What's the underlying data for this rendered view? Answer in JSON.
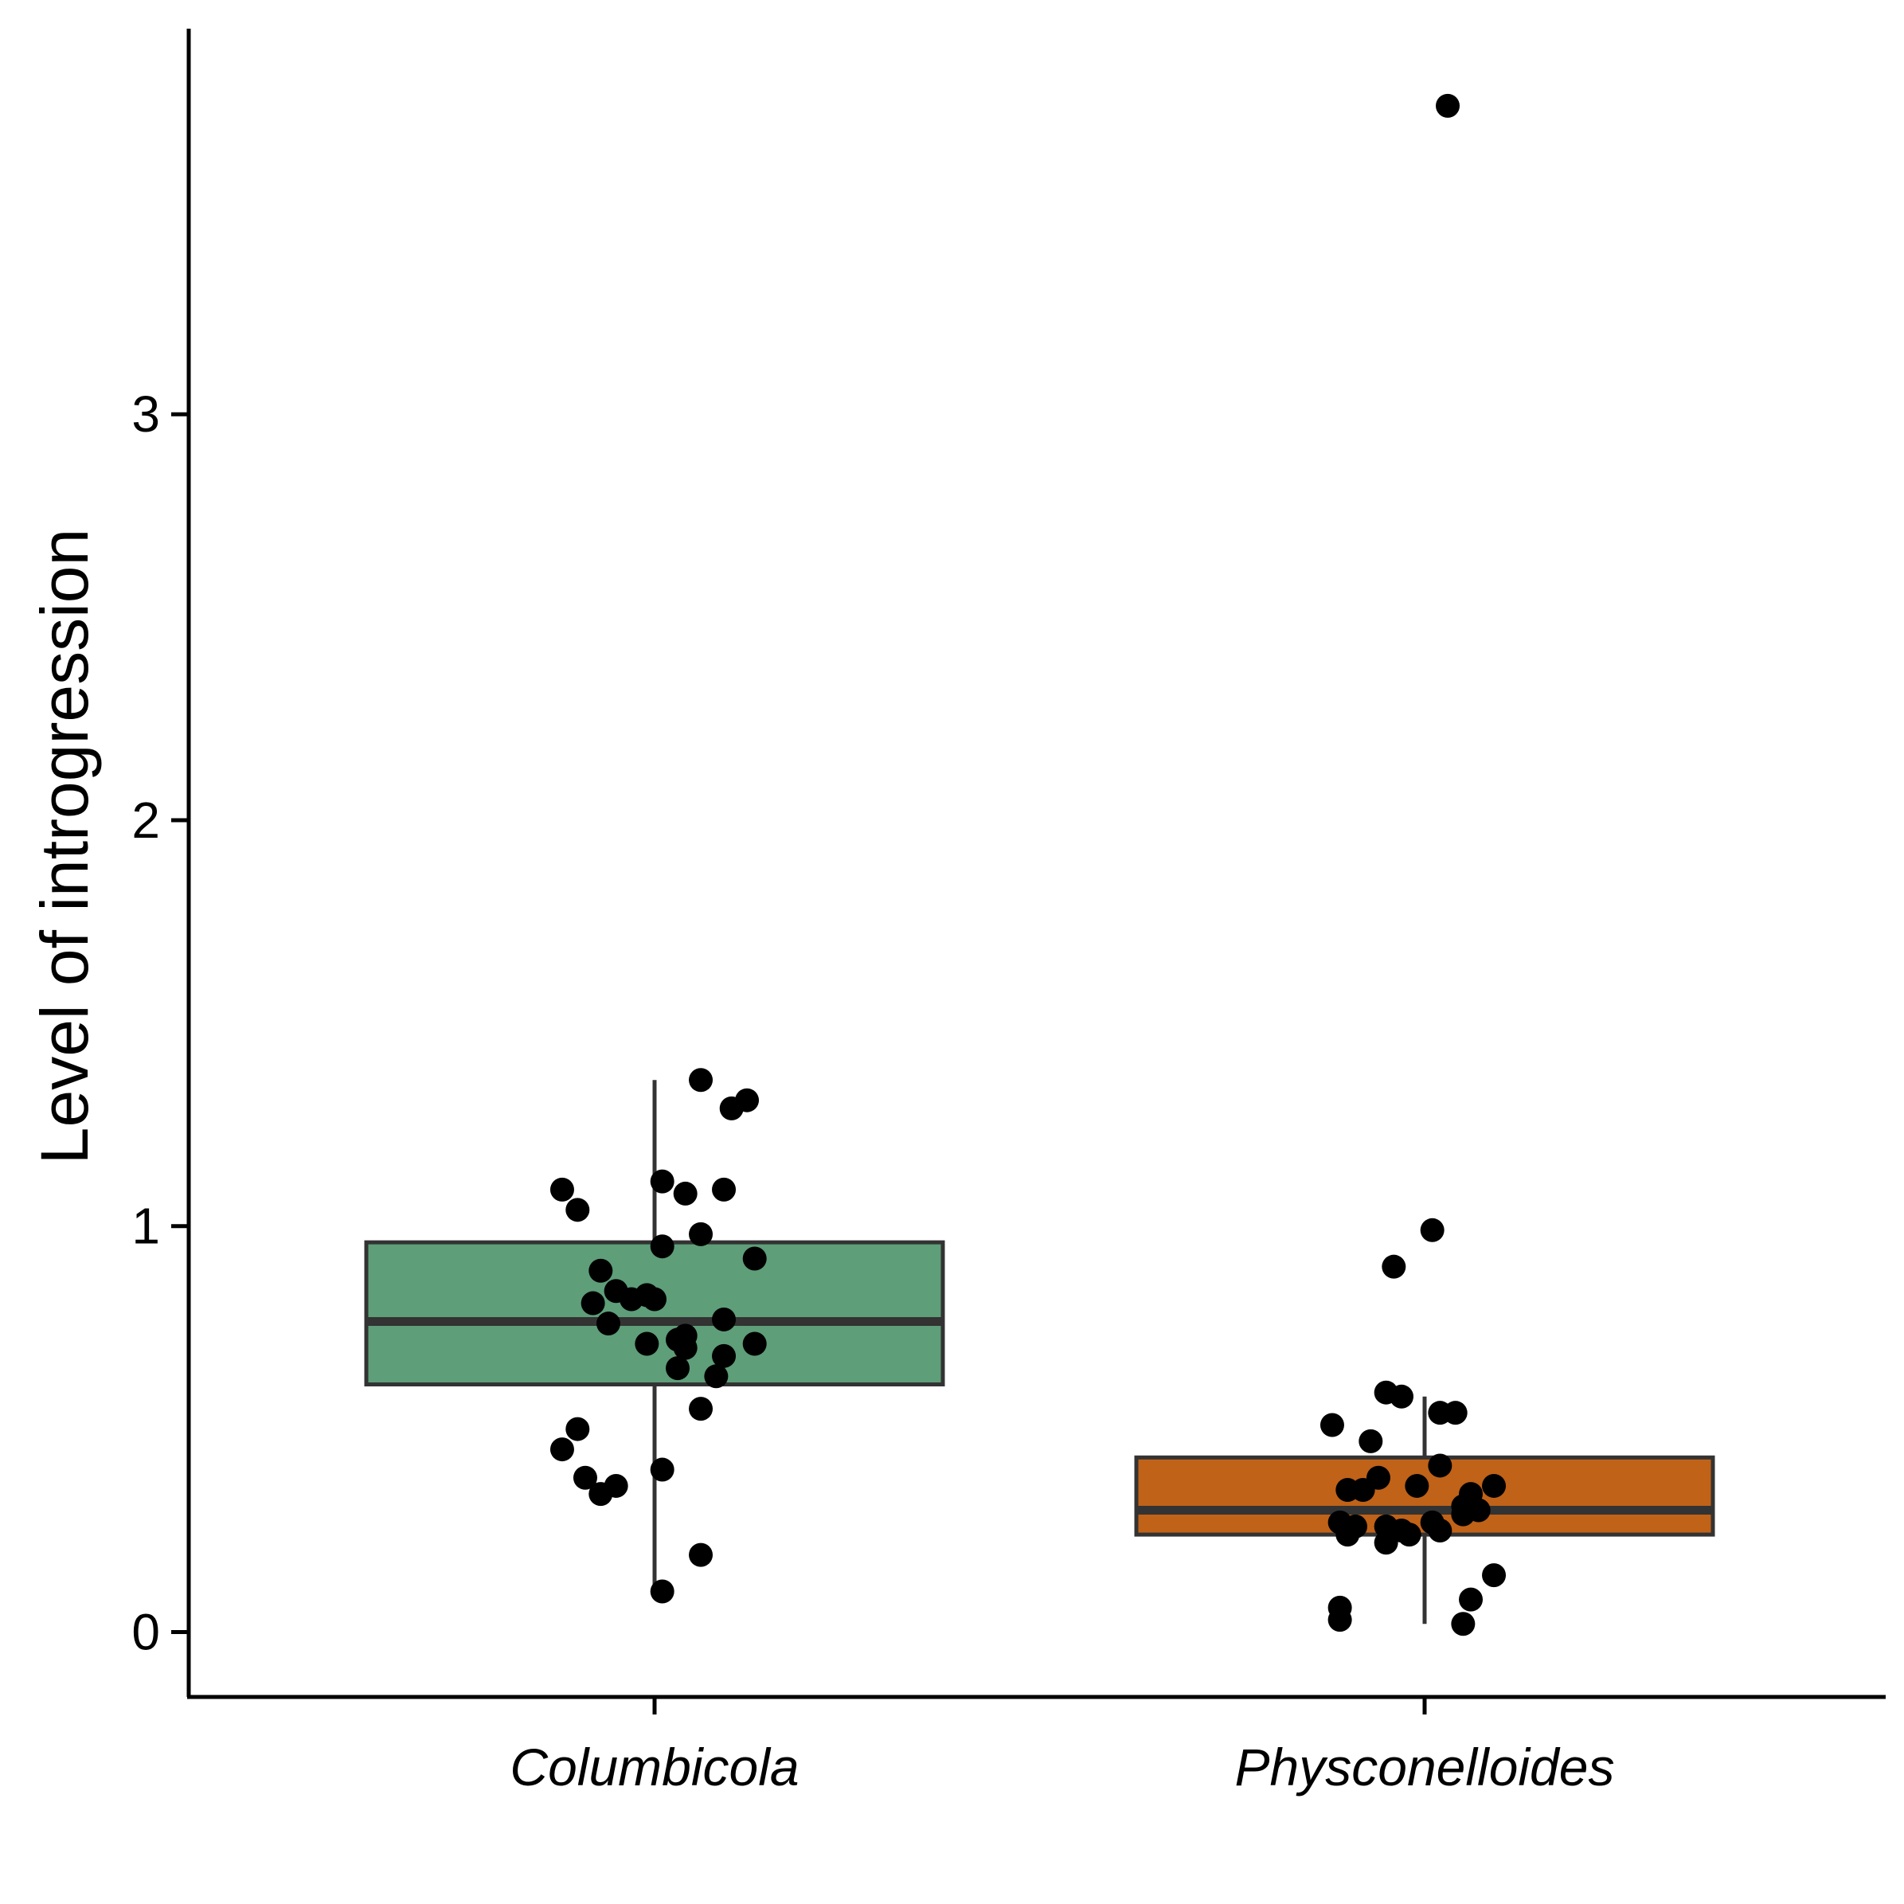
{
  "chart_data": {
    "type": "box",
    "ylabel": "Level of introgression",
    "xlabel": "",
    "ylim": [
      -0.16,
      3.95
    ],
    "y_ticks": [
      0,
      1,
      2,
      3
    ],
    "y_tick_labels": [
      "0",
      "1",
      "2",
      "3"
    ],
    "grid": false,
    "legend": "none",
    "categories": [
      "Columbicola",
      "Physconelloides"
    ],
    "series": [
      {
        "category": "Columbicola",
        "color": "#5e9e79",
        "box": {
          "q1": 0.61,
          "median": 0.765,
          "q3": 0.96,
          "whisker_low": 0.1,
          "whisker_high": 1.36
        },
        "points": [
          [
            0.06,
            1.36
          ],
          [
            0.12,
            1.31
          ],
          [
            0.1,
            1.29
          ],
          [
            -0.12,
            1.09
          ],
          [
            -0.1,
            1.04
          ],
          [
            0.01,
            1.11
          ],
          [
            0.04,
            1.08
          ],
          [
            0.09,
            1.09
          ],
          [
            0.06,
            0.98
          ],
          [
            0.01,
            0.95
          ],
          [
            0.13,
            0.92
          ],
          [
            -0.07,
            0.89
          ],
          [
            -0.05,
            0.84
          ],
          [
            -0.03,
            0.82
          ],
          [
            -0.01,
            0.83
          ],
          [
            0.0,
            0.82
          ],
          [
            -0.08,
            0.81
          ],
          [
            -0.06,
            0.76
          ],
          [
            0.09,
            0.77
          ],
          [
            0.04,
            0.73
          ],
          [
            0.03,
            0.72
          ],
          [
            -0.01,
            0.71
          ],
          [
            0.04,
            0.7
          ],
          [
            0.13,
            0.71
          ],
          [
            0.09,
            0.68
          ],
          [
            0.03,
            0.65
          ],
          [
            0.08,
            0.63
          ],
          [
            0.06,
            0.55
          ],
          [
            -0.1,
            0.5
          ],
          [
            -0.12,
            0.45
          ],
          [
            0.01,
            0.4
          ],
          [
            -0.09,
            0.38
          ],
          [
            -0.05,
            0.36
          ],
          [
            -0.07,
            0.34
          ],
          [
            0.06,
            0.19
          ],
          [
            0.01,
            0.1
          ]
        ]
      },
      {
        "category": "Physconelloides",
        "color": "#c06218",
        "box": {
          "q1": 0.24,
          "median": 0.3,
          "q3": 0.43,
          "whisker_low": 0.02,
          "whisker_high": 0.58
        },
        "points": [
          [
            0.03,
            3.76
          ],
          [
            0.01,
            0.99
          ],
          [
            -0.04,
            0.9
          ],
          [
            -0.05,
            0.59
          ],
          [
            -0.03,
            0.58
          ],
          [
            0.02,
            0.54
          ],
          [
            0.04,
            0.54
          ],
          [
            -0.12,
            0.51
          ],
          [
            -0.07,
            0.47
          ],
          [
            0.02,
            0.41
          ],
          [
            -0.06,
            0.38
          ],
          [
            -0.1,
            0.35
          ],
          [
            -0.08,
            0.35
          ],
          [
            -0.01,
            0.36
          ],
          [
            0.06,
            0.34
          ],
          [
            0.09,
            0.36
          ],
          [
            0.05,
            0.31
          ],
          [
            0.07,
            0.3
          ],
          [
            0.05,
            0.29
          ],
          [
            -0.11,
            0.27
          ],
          [
            -0.09,
            0.26
          ],
          [
            0.01,
            0.27
          ],
          [
            -0.05,
            0.26
          ],
          [
            -0.03,
            0.25
          ],
          [
            0.02,
            0.25
          ],
          [
            -0.1,
            0.24
          ],
          [
            -0.02,
            0.24
          ],
          [
            -0.05,
            0.22
          ],
          [
            0.09,
            0.14
          ],
          [
            0.06,
            0.08
          ],
          [
            -0.11,
            0.06
          ],
          [
            -0.11,
            0.03
          ],
          [
            0.05,
            0.02
          ]
        ]
      }
    ]
  }
}
